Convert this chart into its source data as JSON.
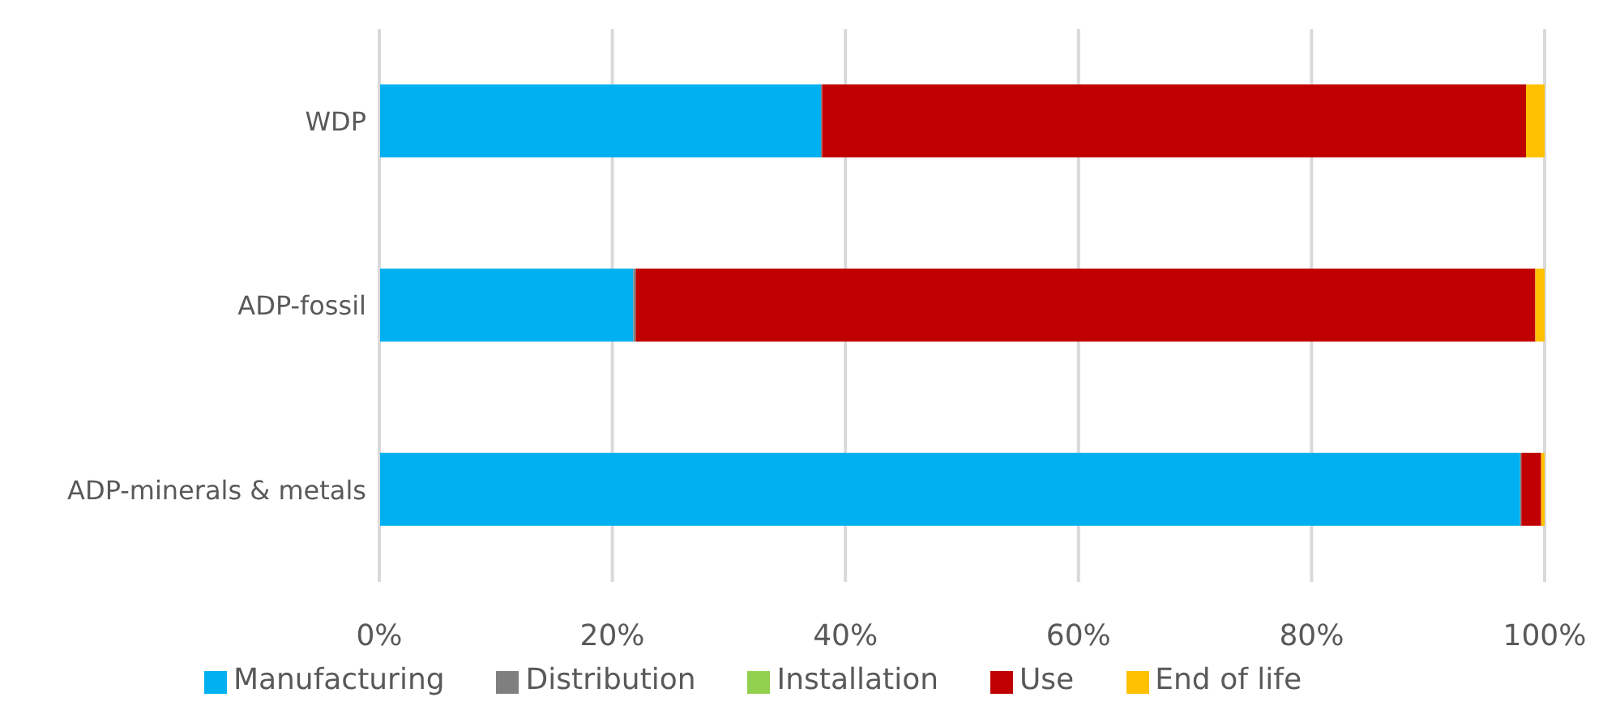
{
  "chart_data": {
    "type": "bar",
    "orientation": "horizontal",
    "stacked": true,
    "categories": [
      "WDP",
      "ADP-fossil",
      "ADP-minerals & metals"
    ],
    "series": [
      {
        "name": "Manufacturing",
        "color": "#00b0f0",
        "values": [
          37.9,
          21.8,
          97.9
        ]
      },
      {
        "name": "Distribution",
        "color": "#7f7f7f",
        "values": [
          0.1,
          0.2,
          0.1
        ]
      },
      {
        "name": "Installation",
        "color": "#92d050",
        "values": [
          0,
          0,
          0
        ]
      },
      {
        "name": "Use",
        "color": "#c00000",
        "values": [
          60.4,
          77.2,
          1.7
        ]
      },
      {
        "name": "End of life",
        "color": "#ffc000",
        "values": [
          1.6,
          0.8,
          0.3
        ]
      }
    ],
    "xlim": [
      0,
      100
    ],
    "xticks": [
      {
        "value": 0,
        "label": "0%"
      },
      {
        "value": 20,
        "label": "20%"
      },
      {
        "value": 40,
        "label": "40%"
      },
      {
        "value": 60,
        "label": "60%"
      },
      {
        "value": 80,
        "label": "80%"
      },
      {
        "value": 100,
        "label": "100%"
      }
    ],
    "grid": "x",
    "legend": "bottom"
  }
}
